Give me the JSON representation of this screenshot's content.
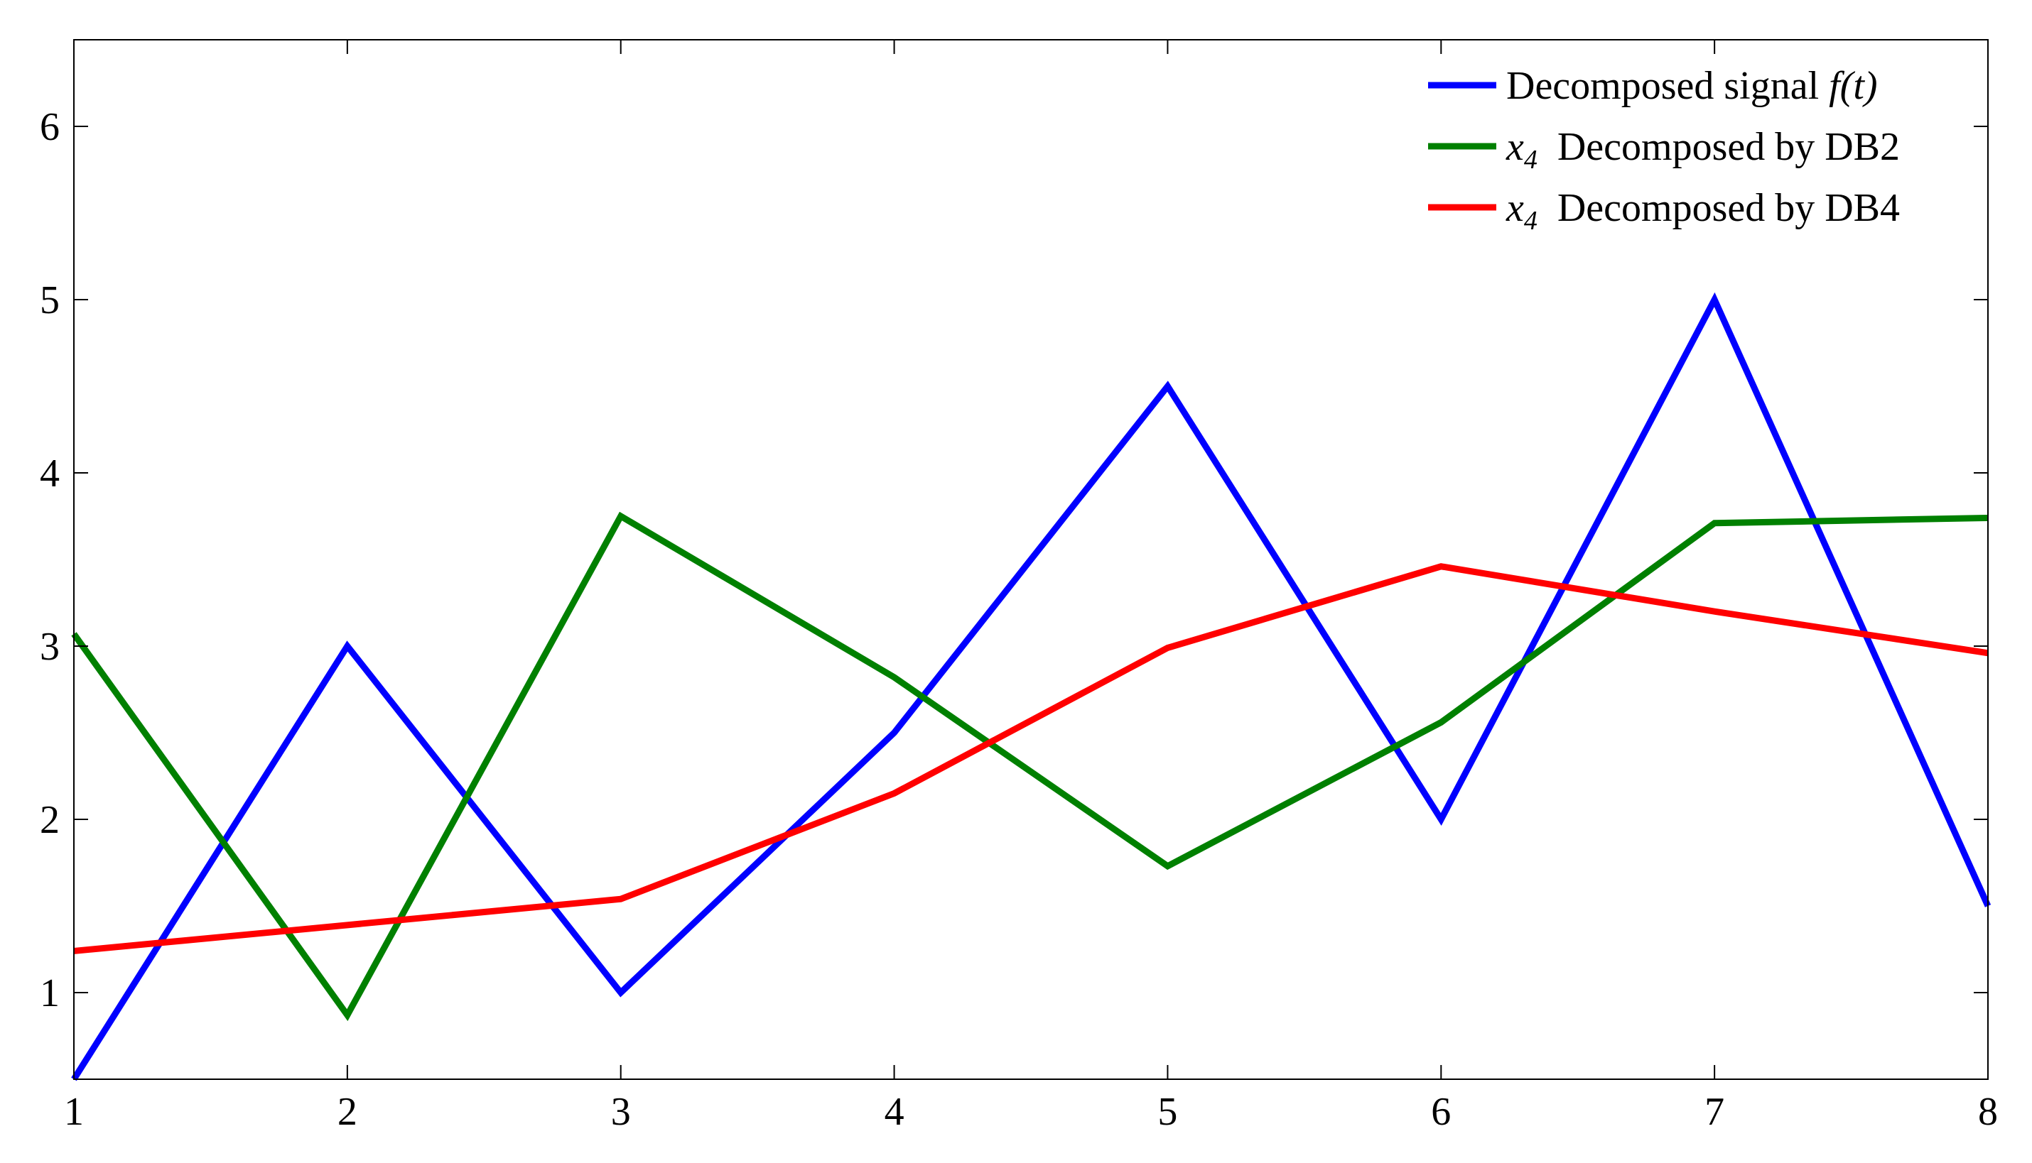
{
  "chart_data": {
    "type": "line",
    "x": [
      1,
      2,
      3,
      4,
      5,
      6,
      7,
      8
    ],
    "xlim": [
      1,
      8
    ],
    "ylim": [
      0.5,
      6.5
    ],
    "xticks": [
      "1",
      "2",
      "3",
      "4",
      "5",
      "6",
      "7",
      "8"
    ],
    "yticks": [
      "1",
      "2",
      "3",
      "4",
      "5",
      "6"
    ],
    "xtick_values": [
      1,
      2,
      3,
      4,
      5,
      6,
      7,
      8
    ],
    "ytick_values": [
      1,
      2,
      3,
      4,
      5,
      6
    ],
    "grid": false,
    "legend_position": "top-right",
    "series": [
      {
        "name": "Decomposed signal f(t)",
        "legend_text": "Decomposed signal",
        "legend_math": "f(t)",
        "color": "#0000ff",
        "values": [
          0.5,
          3.0,
          1.0,
          2.5,
          4.5,
          2.0,
          5.0,
          1.5
        ]
      },
      {
        "name": "x4 Decomposed by DB2",
        "legend_math": "x",
        "legend_sub": "4",
        "legend_text": "Decomposed by DB2",
        "color": "#008000",
        "values": [
          3.07,
          0.87,
          3.75,
          2.82,
          1.73,
          2.56,
          3.71,
          3.74
        ]
      },
      {
        "name": "x4 Decomposed by DB4",
        "legend_math": "x",
        "legend_sub": "4",
        "legend_text": "Decomposed by DB4",
        "color": "#ff0000",
        "values": [
          1.24,
          1.39,
          1.54,
          2.15,
          2.99,
          3.46,
          3.2,
          2.96
        ]
      }
    ]
  }
}
